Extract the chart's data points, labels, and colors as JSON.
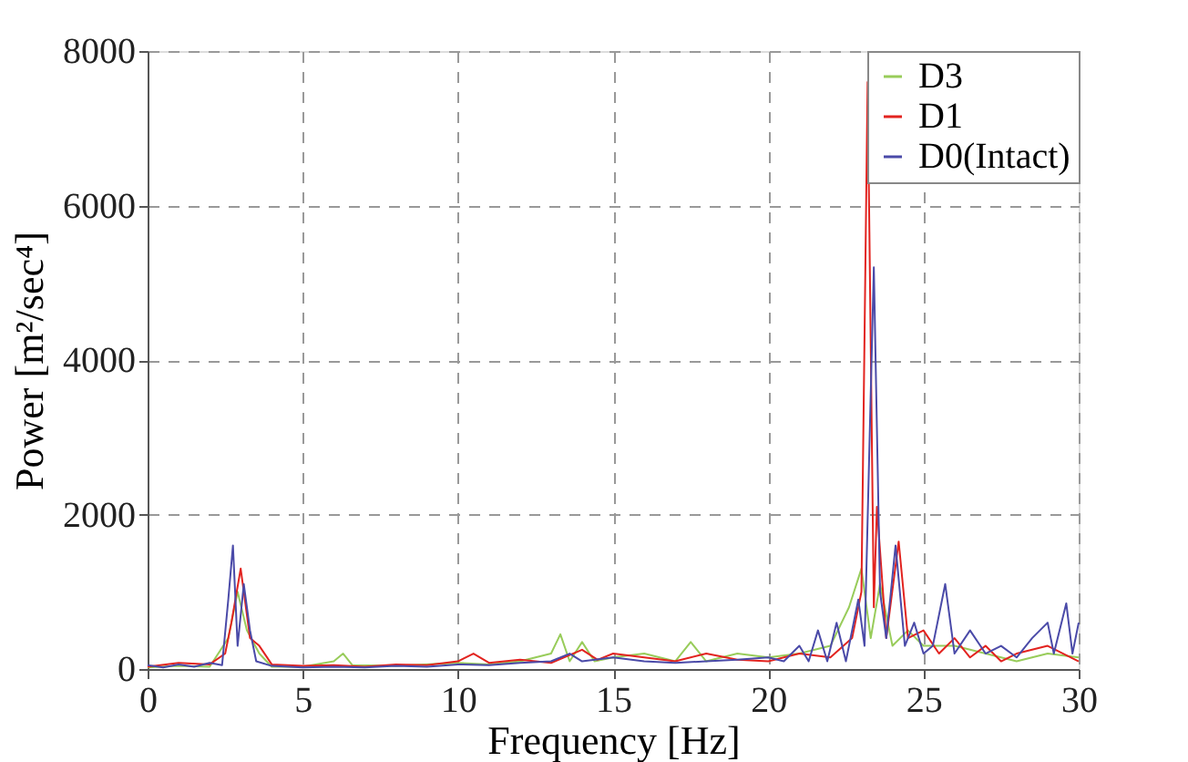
{
  "chart_data": {
    "type": "line",
    "xlabel": "Frequency [Hz]",
    "ylabel": "Power [m²/sec⁴]",
    "xlim": [
      0,
      30
    ],
    "xticks": [
      0,
      5,
      10,
      15,
      20,
      25,
      30
    ],
    "ylim": [
      0,
      8000
    ],
    "yticks": [
      0,
      2000,
      4000,
      6000,
      8000
    ],
    "grid": true,
    "legend": "top right",
    "line_style": "solid",
    "marker": "none",
    "series": [
      {
        "name": "D3",
        "color": "#98cc5a",
        "x": [
          0,
          1,
          2,
          2.6,
          2.9,
          3.2,
          3.6,
          4,
          5,
          6,
          6.3,
          6.6,
          8,
          10,
          11,
          12,
          13,
          13.3,
          13.6,
          14,
          14.4,
          15,
          16,
          17,
          17.5,
          18,
          19,
          20,
          21,
          22,
          22.6,
          23.0,
          23.3,
          23.6,
          24,
          24.5,
          25,
          26,
          27,
          28,
          29,
          30
        ],
        "values": [
          20,
          40,
          30,
          400,
          1000,
          500,
          200,
          30,
          30,
          100,
          200,
          50,
          40,
          80,
          60,
          100,
          200,
          450,
          100,
          350,
          100,
          150,
          200,
          100,
          350,
          100,
          200,
          150,
          200,
          300,
          800,
          1300,
          400,
          1100,
          300,
          500,
          300,
          300,
          200,
          100,
          200,
          150
        ]
      },
      {
        "name": "D1",
        "color": "#e2231f",
        "x": [
          0,
          1,
          2,
          2.5,
          2.7,
          3.0,
          3.3,
          3.6,
          4,
          5,
          6,
          7,
          8,
          9,
          10,
          10.5,
          11,
          12,
          13,
          14,
          14.5,
          15,
          16,
          17,
          18,
          19,
          20,
          21,
          22,
          22.7,
          23.0,
          23.2,
          23.4,
          23.5,
          23.8,
          24.2,
          24.5,
          25,
          25.5,
          26,
          26.5,
          27,
          27.5,
          28,
          29,
          30
        ],
        "values": [
          30,
          80,
          60,
          200,
          600,
          1300,
          400,
          300,
          60,
          40,
          50,
          30,
          60,
          50,
          100,
          200,
          80,
          120,
          80,
          250,
          120,
          200,
          150,
          100,
          200,
          120,
          100,
          200,
          150,
          400,
          1000,
          7600,
          800,
          2100,
          400,
          1650,
          400,
          500,
          200,
          400,
          150,
          300,
          100,
          200,
          300,
          100
        ]
      },
      {
        "name": "D0(Intact)",
        "color": "#4a4aa8",
        "x": [
          0,
          0.5,
          1,
          1.5,
          2,
          2.4,
          2.6,
          2.75,
          2.9,
          3.1,
          3.3,
          3.5,
          4,
          5,
          6,
          7,
          8,
          9,
          10,
          11,
          12,
          13,
          13.6,
          14,
          15,
          16,
          17,
          18,
          19,
          20,
          20.5,
          21,
          21.3,
          21.6,
          21.9,
          22.2,
          22.5,
          22.9,
          23.1,
          23.4,
          23.6,
          23.8,
          24.1,
          24.4,
          24.7,
          25,
          25.3,
          25.7,
          26,
          26.5,
          27,
          27.5,
          28,
          28.5,
          29,
          29.2,
          29.6,
          29.8,
          30
        ],
        "values": [
          50,
          20,
          60,
          30,
          80,
          50,
          900,
          1600,
          300,
          1100,
          500,
          100,
          40,
          20,
          30,
          20,
          40,
          30,
          60,
          50,
          80,
          100,
          200,
          100,
          150,
          100,
          80,
          100,
          120,
          150,
          100,
          300,
          100,
          500,
          100,
          600,
          100,
          900,
          300,
          5200,
          1000,
          400,
          1600,
          300,
          600,
          200,
          300,
          1100,
          200,
          500,
          200,
          300,
          150,
          400,
          600,
          200,
          850,
          200,
          600
        ]
      }
    ]
  }
}
